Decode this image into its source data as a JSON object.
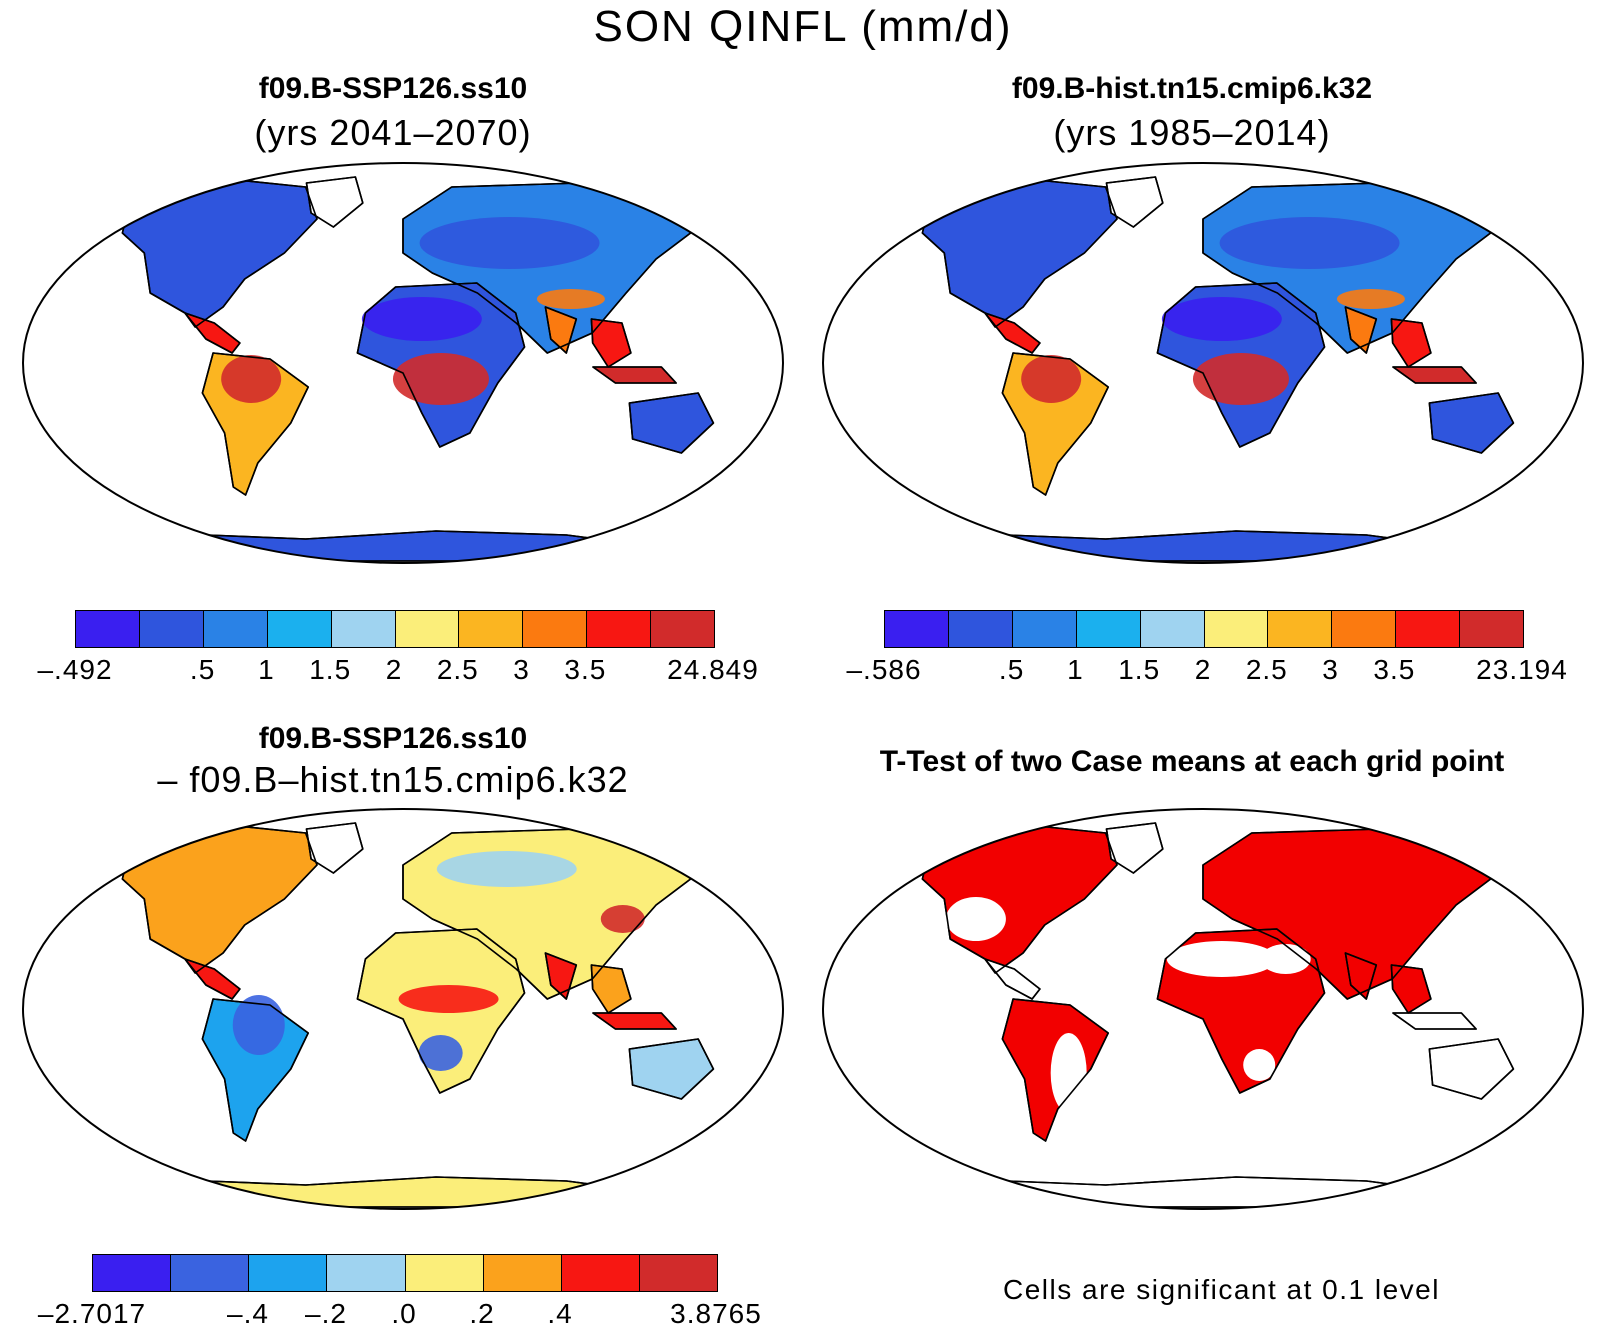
{
  "main_title": "SON QINFL (mm/d)",
  "panels": [
    {
      "title": "f09.B-SSP126.ss10",
      "subtitle": "(yrs 2041–2070)",
      "kind": "mean"
    },
    {
      "title": "f09.B-hist.tn15.cmip6.k32",
      "subtitle": "(yrs 1985–2014)",
      "kind": "mean"
    },
    {
      "title": "f09.B-SSP126.ss10",
      "subtitle": "– f09.B–hist.tn15.cmip6.k32",
      "kind": "diff"
    },
    {
      "title": "T-Test of two Case means at each grid point",
      "subtitle": "",
      "kind": "ttest"
    }
  ],
  "colorbars": [
    {
      "colors": [
        "#3a1ff0",
        "#2f55dd",
        "#2a82e6",
        "#1bb0ee",
        "#9fd3f0",
        "#fbee7a",
        "#fbb521",
        "#fb7a10",
        "#f71712",
        "#d12b2b"
      ],
      "labels": [
        "–.492",
        ".5",
        "1",
        "1.5",
        "2",
        "2.5",
        "3",
        "3.5",
        "24.849"
      ]
    },
    {
      "colors": [
        "#3a1ff0",
        "#2f55dd",
        "#2a82e6",
        "#1bb0ee",
        "#9fd3f0",
        "#fbee7a",
        "#fbb521",
        "#fb7a10",
        "#f71712",
        "#d12b2b"
      ],
      "labels": [
        "–.586",
        ".5",
        "1",
        "1.5",
        "2",
        "2.5",
        "3",
        "3.5",
        "23.194"
      ]
    },
    {
      "colors": [
        "#3a1ff0",
        "#3a63e0",
        "#1da3ee",
        "#9fd3f0",
        "#fbee7a",
        "#fba21c",
        "#f71712",
        "#d12b2b"
      ],
      "labels": [
        "–2.7017",
        "–.4",
        "–.2",
        ".0",
        ".2",
        ".4",
        "3.8765"
      ]
    }
  ],
  "significance_note": "Cells are significant at 0.1 level",
  "significance_color": "#f20000"
}
